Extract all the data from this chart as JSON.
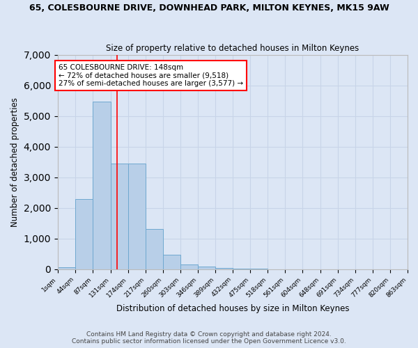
{
  "title_line1": "65, COLESBOURNE DRIVE, DOWNHEAD PARK, MILTON KEYNES, MK15 9AW",
  "title_line2": "Size of property relative to detached houses in Milton Keynes",
  "xlabel": "Distribution of detached houses by size in Milton Keynes",
  "ylabel": "Number of detached properties",
  "annotation_line1": "65 COLESBOURNE DRIVE: 148sqm",
  "annotation_line2": "← 72% of detached houses are smaller (9,518)",
  "annotation_line3": "27% of semi-detached houses are larger (3,577) →",
  "bar_edges": [
    1,
    44,
    87,
    131,
    174,
    217,
    260,
    303,
    346,
    389,
    432,
    475,
    518,
    561,
    604,
    648,
    691,
    734,
    777,
    820,
    863
  ],
  "bar_heights": [
    75,
    2280,
    5480,
    3450,
    3450,
    1320,
    470,
    155,
    80,
    50,
    25,
    10,
    5,
    3,
    2,
    1,
    1,
    0,
    0,
    0
  ],
  "bar_color": "#b8cfe8",
  "bar_edge_color": "#6fa8d0",
  "red_line_x": 148,
  "ylim": [
    0,
    7000
  ],
  "yticks": [
    0,
    1000,
    2000,
    3000,
    4000,
    5000,
    6000,
    7000
  ],
  "grid_color": "#c8d4e8",
  "background_color": "#dce6f5",
  "footer_line1": "Contains HM Land Registry data © Crown copyright and database right 2024.",
  "footer_line2": "Contains public sector information licensed under the Open Government Licence v3.0."
}
